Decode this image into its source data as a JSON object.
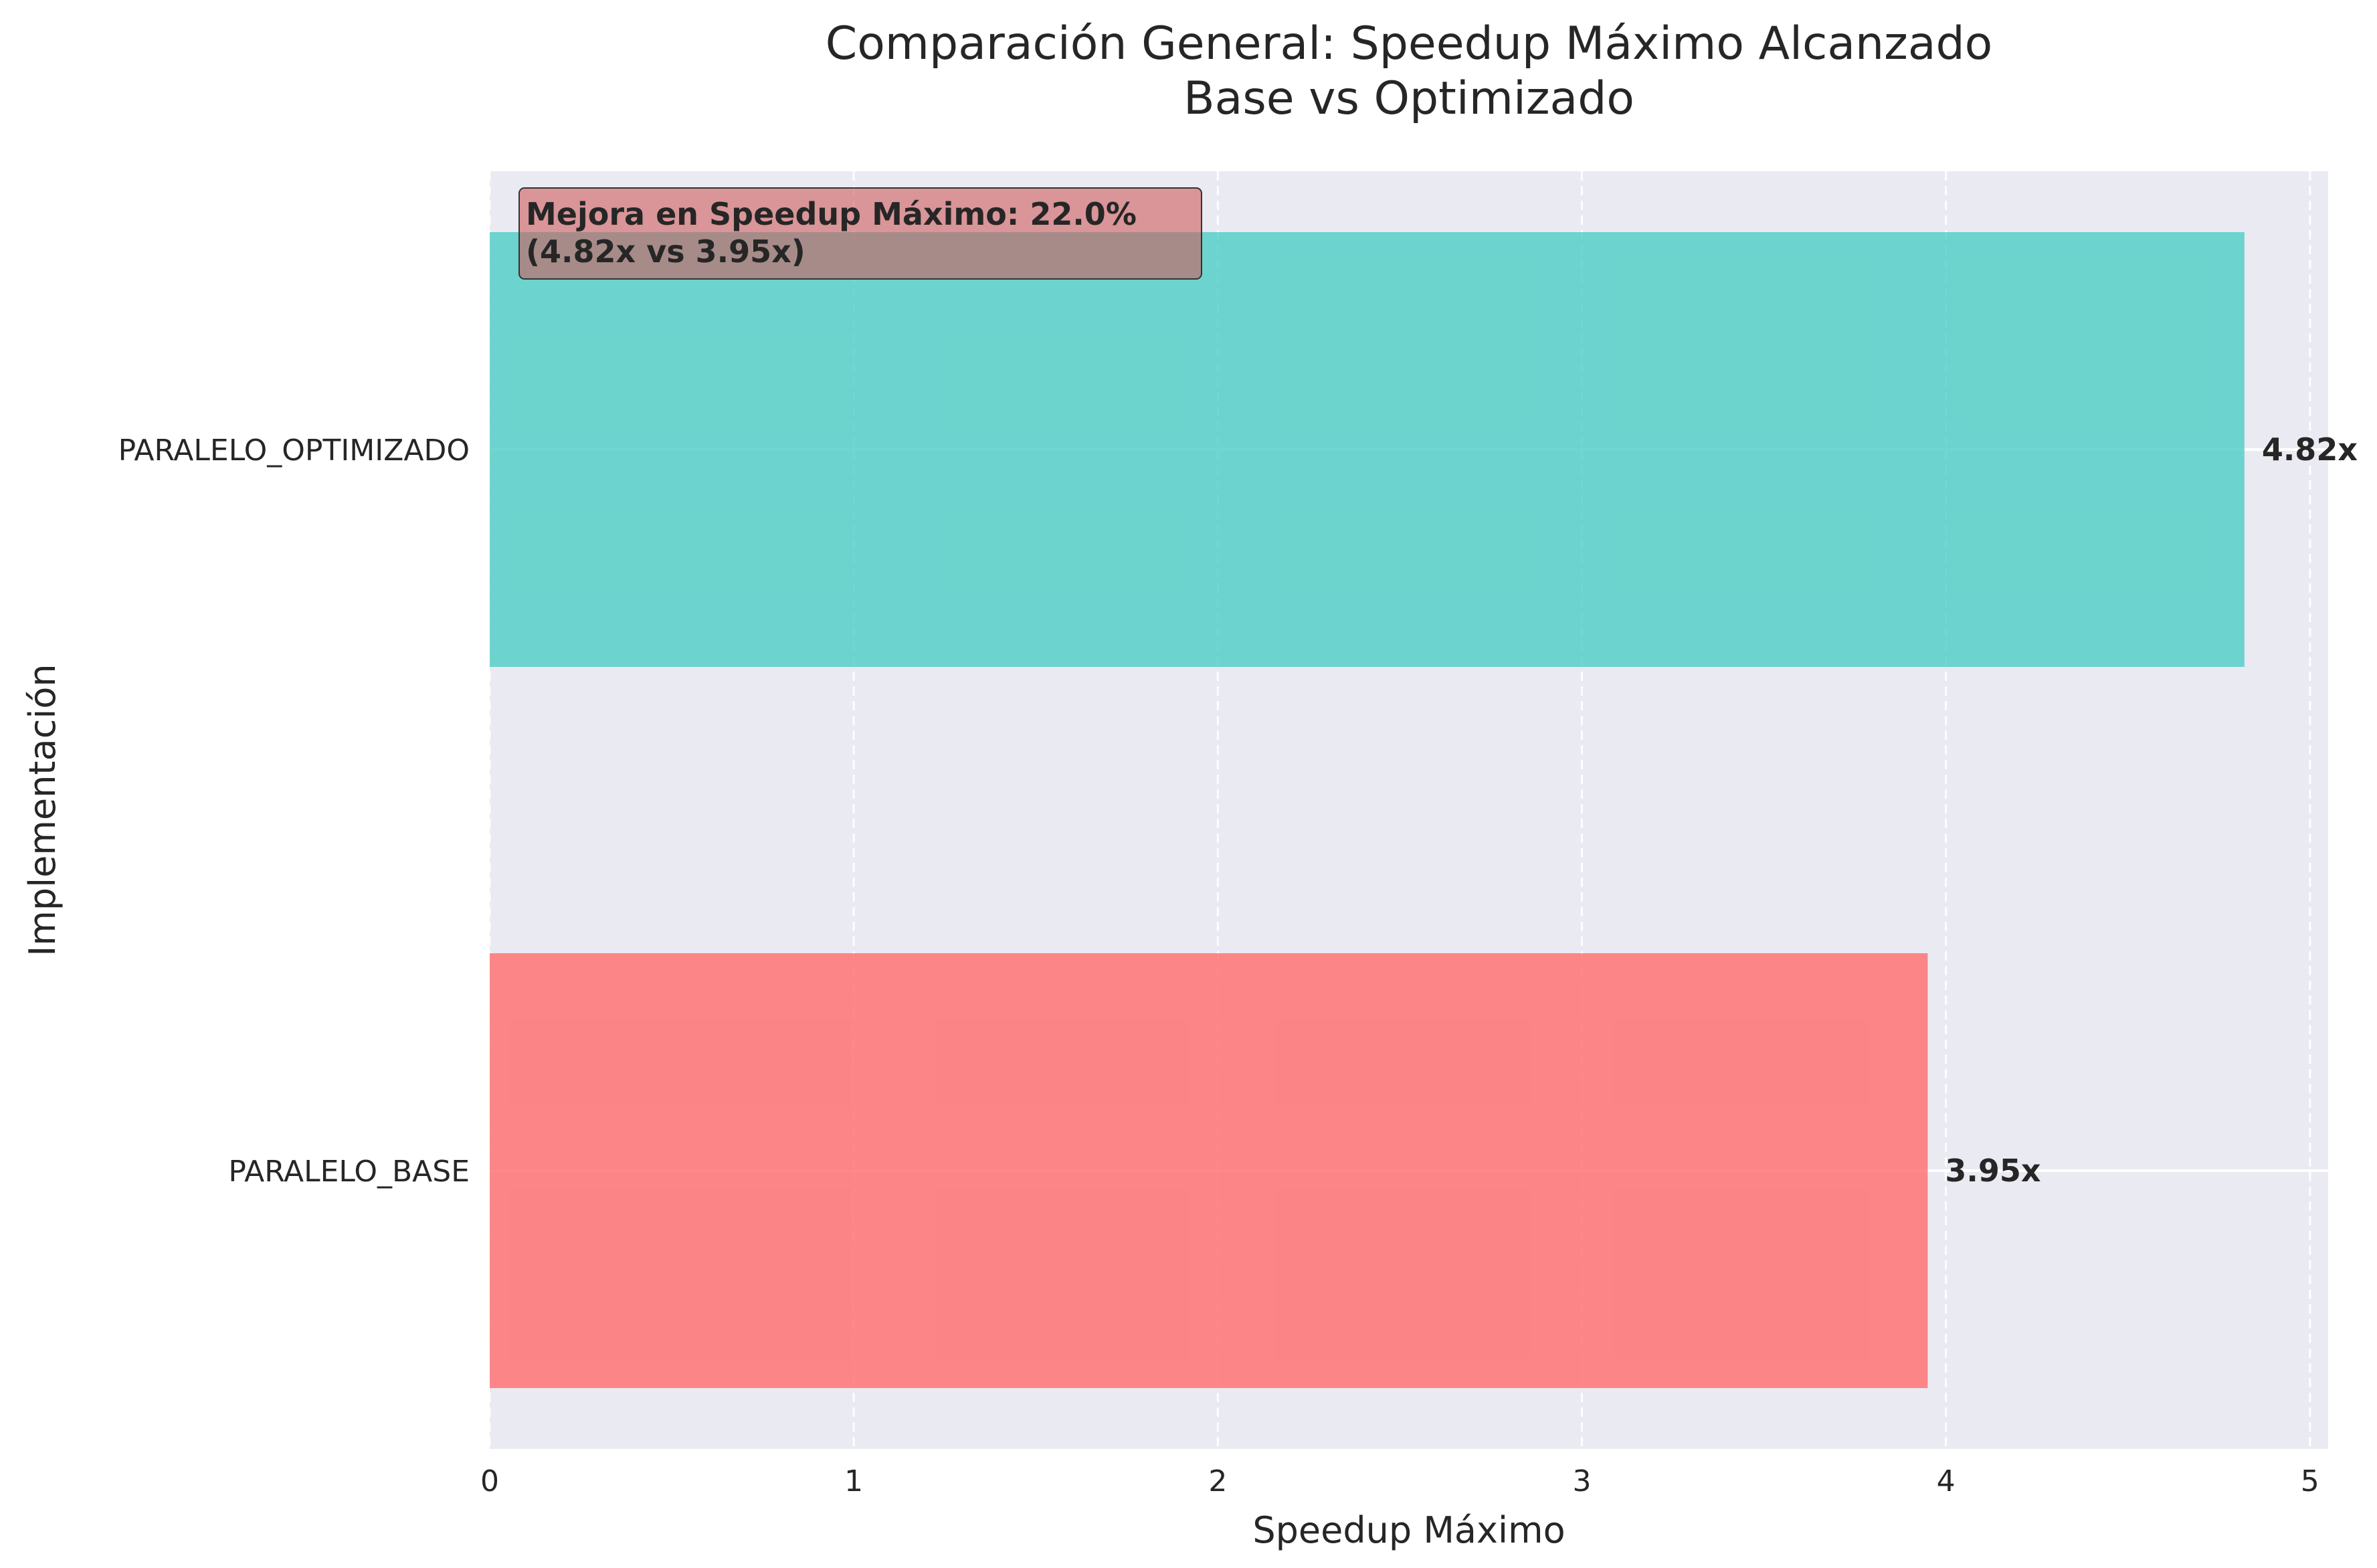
{
  "chart_data": {
    "type": "bar",
    "orientation": "horizontal",
    "title": [
      "Comparación General: Speedup Máximo Alcanzado",
      "Base vs Optimizado"
    ],
    "xlabel": "Speedup Máximo",
    "ylabel": "Implementación",
    "categories": [
      "PARALELO_OPTIMIZADO",
      "PARALELO_BASE"
    ],
    "values": [
      4.82,
      3.95
    ],
    "value_labels": [
      "4.82x",
      "3.95x"
    ],
    "colors": [
      "#4ecdc4",
      "#ff6b6b"
    ],
    "xlim": [
      0,
      5.05
    ],
    "xticks": [
      0,
      1,
      2,
      3,
      4,
      5
    ],
    "xtick_labels": [
      "0",
      "1",
      "2",
      "3",
      "4",
      "5"
    ],
    "grid": true,
    "annotation": {
      "lines": [
        "Mejora en Speedup Máximo: 22.0%",
        "(4.82x vs 3.95x)"
      ],
      "background": "#cd5c5c",
      "position": "top-left"
    },
    "background": "#eaeaf2"
  }
}
